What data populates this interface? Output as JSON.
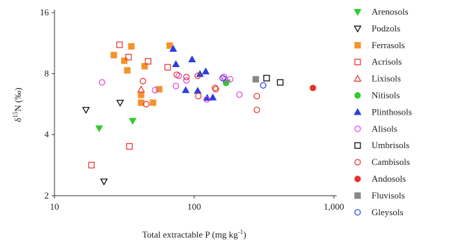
{
  "chart_data": {
    "type": "scatter",
    "x_scale": "log",
    "y_scale": "log",
    "x_label": {
      "text": "Total extractable P (mg kg",
      "sup": "-1",
      "end": ")"
    },
    "y_label": {
      "pre": "δ",
      "sup": "15",
      "post": "N (‰)"
    },
    "xlim": [
      10,
      1000
    ],
    "ylim": [
      2,
      16
    ],
    "xticks": [
      10,
      100,
      {
        "value": 1000,
        "label": "1,000"
      }
    ],
    "yticks": [
      2,
      4,
      8,
      16
    ],
    "series": [
      {
        "name": "Arenosols",
        "color": "#2ecc2e",
        "marker": "triangle-down",
        "filled": true,
        "x": [
          20.9,
          36.3,
          172
        ],
        "y": [
          4.3,
          4.68,
          7.24
        ]
      },
      {
        "name": "Podzols",
        "color": "#000000",
        "marker": "triangle-down",
        "filled": false,
        "x": [
          16.8,
          29.5,
          22.6
        ],
        "y": [
          5.3,
          5.75,
          2.35
        ]
      },
      {
        "name": "Ferrasols",
        "color": "#f5922a",
        "marker": "square",
        "filled": true,
        "x": [
          26.6,
          31.6,
          33.2,
          35.5,
          44.2,
          66.8,
          56.2,
          41.7,
          41.7,
          50.7
        ],
        "y": [
          9.87,
          9.26,
          8.3,
          10.9,
          8.7,
          11,
          6.7,
          6.28,
          5.75,
          5.75
        ]
      },
      {
        "name": "Acrisols",
        "color": "#e8302a",
        "marker": "square",
        "filled": false,
        "x": [
          29.2,
          33.9,
          46.8,
          64.6,
          34.4,
          18.4
        ],
        "y": [
          11.1,
          9.65,
          9.2,
          8.6,
          3.5,
          2.83
        ]
      },
      {
        "name": "Lixisols",
        "color": "#e8302a",
        "marker": "triangle-up",
        "filled": false,
        "x": [
          41.7
        ],
        "y": [
          6.68
        ]
      },
      {
        "name": "Nitisols",
        "color": "#2ecc2e",
        "marker": "circle",
        "filled": true,
        "x": [
          169
        ],
        "y": [
          7.2
        ]
      },
      {
        "name": "Plinthosols",
        "color": "#2b3fe0",
        "marker": "triangle-up",
        "filled": true,
        "x": [
          70.8,
          74,
          96.6,
          87,
          106,
          121,
          124,
          136,
          110
        ],
        "y": [
          10.6,
          8.9,
          9.4,
          6.63,
          6.58,
          8.2,
          6.07,
          6.1,
          7.96
        ]
      },
      {
        "name": "Alisols",
        "color": "#e040e0",
        "marker": "circle",
        "filled": false,
        "x": [
          21.9,
          52.5,
          74,
          77.6,
          88,
          123,
          164,
          166,
          181,
          211
        ],
        "y": [
          7.24,
          6.63,
          6.95,
          7.8,
          7.4,
          5.96,
          7.7,
          7.5,
          7.5,
          6.3
        ]
      },
      {
        "name": "Umbrisols",
        "color": "#000000",
        "marker": "square",
        "filled": false,
        "x": [
          330,
          413
        ],
        "y": [
          7.6,
          7.24
        ]
      },
      {
        "name": "Cambisols",
        "color": "#e8302a",
        "marker": "circle",
        "filled": false,
        "x": [
          43,
          45.4,
          75,
          88,
          106,
          107,
          141,
          143,
          281,
          281
        ],
        "y": [
          7.35,
          5.65,
          7.9,
          7.7,
          7.8,
          6.2,
          6.8,
          6.7,
          6.2,
          5.3
        ]
      },
      {
        "name": "Andosols",
        "color": "#e8302a",
        "marker": "circle",
        "filled": true,
        "x": [
          708
        ],
        "y": [
          6.8
        ]
      },
      {
        "name": "Fluvisols",
        "color": "#888888",
        "marker": "square",
        "filled": true,
        "x": [
          276
        ],
        "y": [
          7.5
        ]
      },
      {
        "name": "Gleysols",
        "color": "#2b3fe0",
        "marker": "circle",
        "filled": false,
        "x": [
          160,
          312
        ],
        "y": [
          7.6,
          7.0
        ]
      }
    ]
  }
}
